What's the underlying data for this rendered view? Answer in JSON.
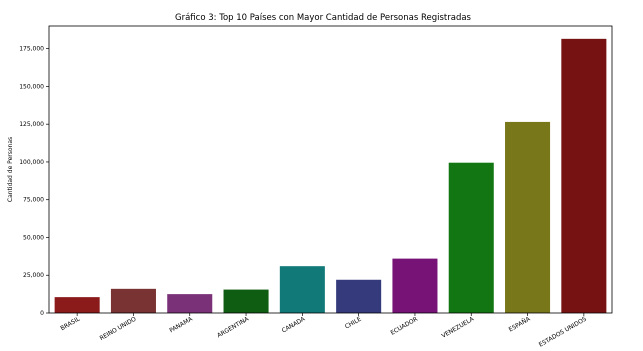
{
  "chart_data": {
    "type": "bar",
    "title": "Gráfico 3: Top 10 Países con Mayor Cantidad de Personas Registradas",
    "xlabel": "",
    "ylabel": "Cantidad de Personas",
    "categories": [
      "BRASIL",
      "REINO UNIDO",
      "PANAMA",
      "ARGENTINA",
      "CANADA",
      "CHILE",
      "ECUADOR",
      "VENEZUELA",
      "ESPAÑA",
      "ESTADOS UNIDOS"
    ],
    "values": [
      10500,
      16000,
      12500,
      15500,
      31000,
      22000,
      36000,
      99500,
      126500,
      181500
    ],
    "colors": [
      "#8b1a1a",
      "#7a3333",
      "#7a3177",
      "#0f5c13",
      "#117a78",
      "#343a7c",
      "#771277",
      "#127712",
      "#78771a",
      "#771212"
    ],
    "ylim": [
      0,
      190000
    ],
    "yticks": [
      {
        "value": 0,
        "label": "0"
      },
      {
        "value": 25000,
        "label": "25,000"
      },
      {
        "value": 50000,
        "label": "50,000"
      },
      {
        "value": 75000,
        "label": "75,000"
      },
      {
        "value": 100000,
        "label": "100,000"
      },
      {
        "value": 125000,
        "label": "125,000"
      },
      {
        "value": 150000,
        "label": "150,000"
      },
      {
        "value": 175000,
        "label": "175,000"
      }
    ],
    "grid": false,
    "legend": "none"
  }
}
